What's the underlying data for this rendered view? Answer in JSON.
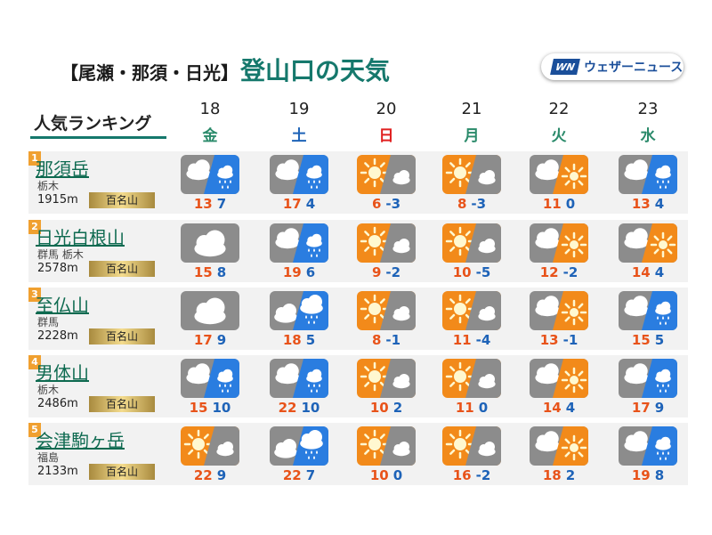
{
  "title": {
    "bracket": "【尾瀬・那須・日光】",
    "main": "登山口の天気"
  },
  "logo": {
    "mark": "WN",
    "text": "ウェザーニュース"
  },
  "ranking_label": "人気ランキング",
  "colors": {
    "accent_green": "#15786c",
    "max_temp": "#e8531a",
    "min_temp": "#1e63b8",
    "sun_bg": "#f28a1a",
    "cloud_bg": "#8c8c8c",
    "rain_bg": "#2a7de0",
    "rank_badge": "#f0a030"
  },
  "days": [
    {
      "date": "18",
      "weekday": "金",
      "type": "weekday"
    },
    {
      "date": "19",
      "weekday": "土",
      "type": "sat"
    },
    {
      "date": "20",
      "weekday": "日",
      "type": "sun"
    },
    {
      "date": "21",
      "weekday": "月",
      "type": "weekday"
    },
    {
      "date": "22",
      "weekday": "火",
      "type": "weekday"
    },
    {
      "date": "23",
      "weekday": "水",
      "type": "weekday"
    }
  ],
  "mountains": [
    {
      "rank": "1",
      "name": "那須岳",
      "prefecture": "栃木",
      "elevation": "1915m",
      "badge": "百名山",
      "forecast": [
        {
          "icon": "cloudy-then-rain",
          "max": "13",
          "min": "7"
        },
        {
          "icon": "cloudy-then-rain",
          "max": "17",
          "min": "4"
        },
        {
          "icon": "sunny-then-cloudy",
          "max": "6",
          "min": "-3"
        },
        {
          "icon": "sunny-then-cloudy",
          "max": "8",
          "min": "-3"
        },
        {
          "icon": "cloudy-then-sunny",
          "max": "11",
          "min": "0"
        },
        {
          "icon": "cloudy-then-rain",
          "max": "13",
          "min": "4"
        }
      ]
    },
    {
      "rank": "2",
      "name": "日光白根山",
      "prefecture": "群馬 栃木",
      "elevation": "2578m",
      "badge": "百名山",
      "forecast": [
        {
          "icon": "cloudy",
          "max": "15",
          "min": "8"
        },
        {
          "icon": "cloudy-then-rain",
          "max": "19",
          "min": "6"
        },
        {
          "icon": "sunny-then-cloudy",
          "max": "9",
          "min": "-2"
        },
        {
          "icon": "sunny-then-cloudy",
          "max": "10",
          "min": "-5"
        },
        {
          "icon": "cloudy-then-sunny",
          "max": "12",
          "min": "-2"
        },
        {
          "icon": "cloudy-then-sunny",
          "max": "14",
          "min": "4"
        }
      ]
    },
    {
      "rank": "3",
      "name": "至仏山",
      "prefecture": "群馬",
      "elevation": "2228m",
      "badge": "百名山",
      "forecast": [
        {
          "icon": "cloudy",
          "max": "17",
          "min": "9"
        },
        {
          "icon": "cloudy-with-rain",
          "max": "18",
          "min": "5"
        },
        {
          "icon": "sunny-then-cloudy",
          "max": "8",
          "min": "-1"
        },
        {
          "icon": "sunny-then-cloudy",
          "max": "11",
          "min": "-4"
        },
        {
          "icon": "cloudy-then-sunny",
          "max": "13",
          "min": "-1"
        },
        {
          "icon": "cloudy-then-rain",
          "max": "15",
          "min": "5"
        }
      ]
    },
    {
      "rank": "4",
      "name": "男体山",
      "prefecture": "栃木",
      "elevation": "2486m",
      "badge": "百名山",
      "forecast": [
        {
          "icon": "cloudy-then-rain",
          "max": "15",
          "min": "10"
        },
        {
          "icon": "cloudy-then-rain",
          "max": "22",
          "min": "10"
        },
        {
          "icon": "sunny-then-cloudy",
          "max": "10",
          "min": "2"
        },
        {
          "icon": "sunny-then-cloudy",
          "max": "11",
          "min": "0"
        },
        {
          "icon": "cloudy-then-sunny",
          "max": "14",
          "min": "4"
        },
        {
          "icon": "cloudy-then-rain",
          "max": "17",
          "min": "9"
        }
      ]
    },
    {
      "rank": "5",
      "name": "会津駒ヶ岳",
      "prefecture": "福島",
      "elevation": "2133m",
      "badge": "百名山",
      "forecast": [
        {
          "icon": "sunny-then-cloudy",
          "max": "22",
          "min": "9"
        },
        {
          "icon": "cloudy-with-rain",
          "max": "22",
          "min": "7"
        },
        {
          "icon": "sunny-then-cloudy",
          "max": "10",
          "min": "0"
        },
        {
          "icon": "sunny-then-cloudy",
          "max": "16",
          "min": "-2"
        },
        {
          "icon": "cloudy-then-sunny",
          "max": "18",
          "min": "2"
        },
        {
          "icon": "cloudy-then-rain",
          "max": "19",
          "min": "8"
        }
      ]
    }
  ]
}
